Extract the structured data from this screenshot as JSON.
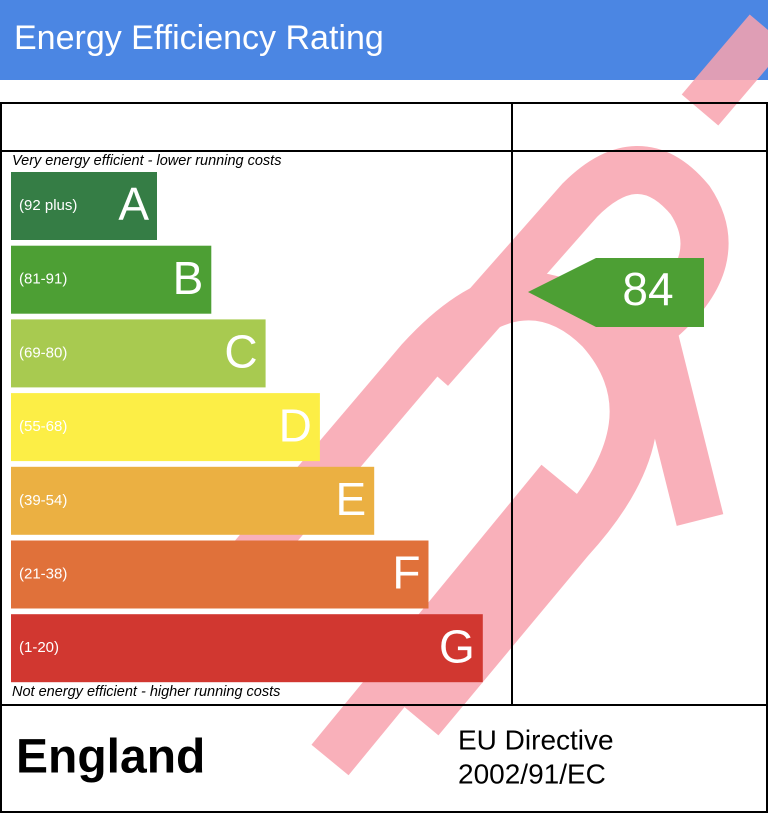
{
  "header": {
    "title": "Energy Efficiency Rating"
  },
  "top_note": "Very energy efficient - lower running costs",
  "bottom_note": "Not energy efficient - higher running costs",
  "bands": [
    {
      "range": "(92 plus)",
      "letter": "A",
      "color": "#357d45"
    },
    {
      "range": "(81-91)",
      "letter": "B",
      "color": "#4d9f34"
    },
    {
      "range": "(69-80)",
      "letter": "C",
      "color": "#a8ca50"
    },
    {
      "range": "(55-68)",
      "letter": "D",
      "color": "#fcee46"
    },
    {
      "range": "(39-54)",
      "letter": "E",
      "color": "#ebb042"
    },
    {
      "range": "(21-38)",
      "letter": "F",
      "color": "#e0713a"
    },
    {
      "range": "(1-20)",
      "letter": "G",
      "color": "#d13730"
    }
  ],
  "current": {
    "value": 84,
    "color": "#4d9f34"
  },
  "footer": {
    "country": "England",
    "directive": [
      "EU Directive",
      "2002/91/EC"
    ]
  }
}
